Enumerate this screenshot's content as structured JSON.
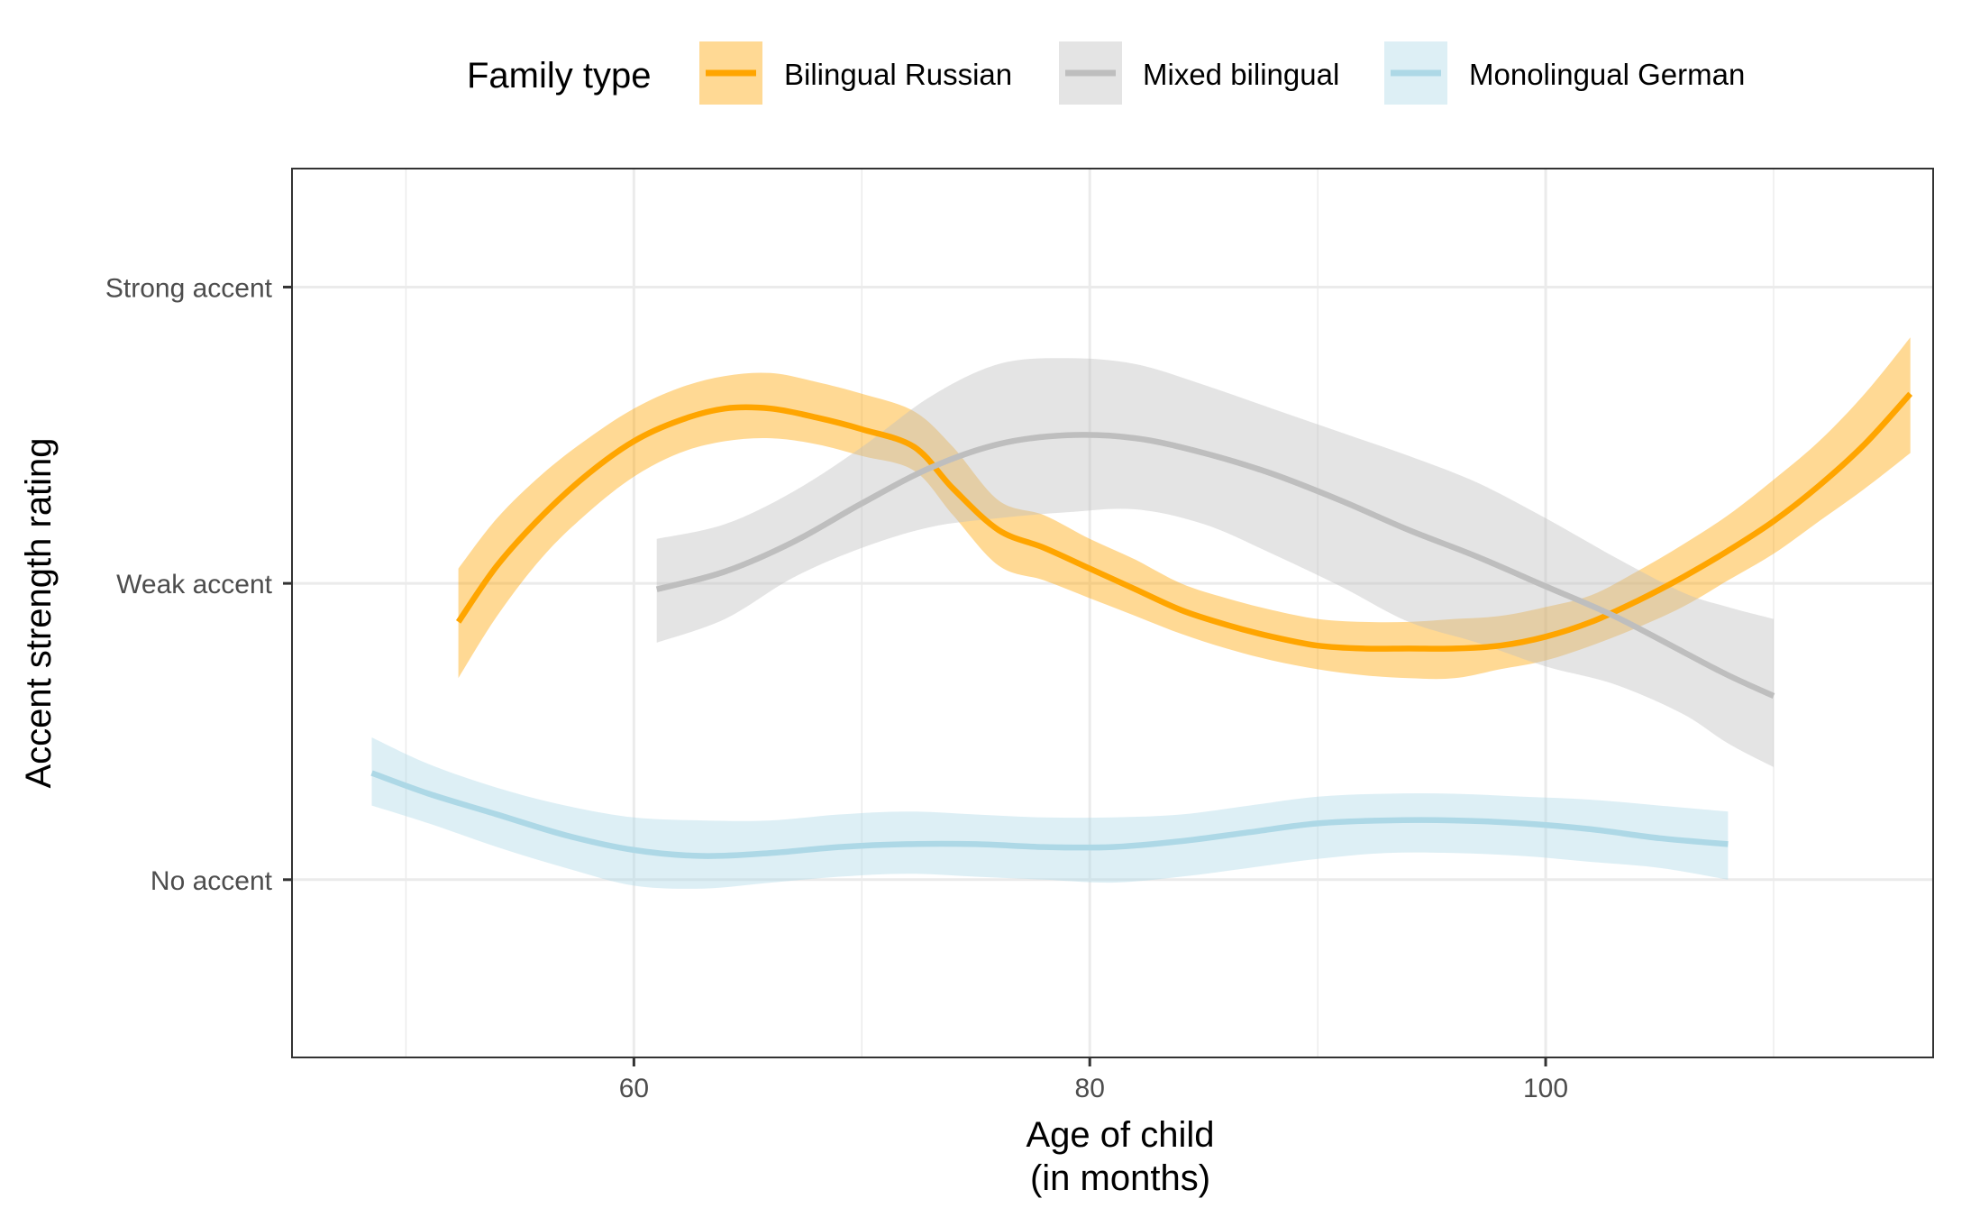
{
  "chart_data": {
    "type": "line",
    "title": "",
    "xlabel": [
      "Age of child",
      "(in months)"
    ],
    "ylabel": "Accent strength rating",
    "xlim": [
      45,
      117
    ],
    "ylim": [
      0.4,
      3.4
    ],
    "x_ticks": [
      60,
      80,
      100
    ],
    "x_tick_labels": [
      "60",
      "80",
      "100"
    ],
    "y_ticks": [
      1,
      2,
      3
    ],
    "y_tick_labels": [
      "No accent",
      "Weak accent",
      "Strong accent"
    ],
    "grid": true,
    "legend": {
      "title": "Family type",
      "position": "top",
      "entries": [
        "Bilingual Russian",
        "Mixed bilingual",
        "Monolingual German"
      ]
    },
    "series": [
      {
        "name": "Bilingual Russian",
        "color": "#FFA500",
        "fill": "#FFA500",
        "fill_opacity": 0.42,
        "x": [
          52.3,
          54,
          56,
          58,
          60,
          62,
          64,
          66,
          68,
          70,
          72.3,
          74,
          76,
          78,
          80,
          82,
          84,
          86,
          88,
          90,
          92,
          94,
          96,
          98,
          100,
          102,
          104,
          106,
          108,
          110,
          112,
          114,
          116
        ],
        "y": [
          1.87,
          2.06,
          2.23,
          2.37,
          2.48,
          2.55,
          2.59,
          2.59,
          2.56,
          2.52,
          2.46,
          2.32,
          2.18,
          2.12,
          2.05,
          1.98,
          1.91,
          1.86,
          1.82,
          1.79,
          1.78,
          1.78,
          1.78,
          1.79,
          1.82,
          1.87,
          1.94,
          2.02,
          2.11,
          2.21,
          2.33,
          2.47,
          2.64
        ],
        "lower": [
          1.68,
          1.89,
          2.09,
          2.24,
          2.36,
          2.44,
          2.48,
          2.49,
          2.47,
          2.43,
          2.38,
          2.23,
          2.06,
          2.01,
          1.95,
          1.89,
          1.83,
          1.78,
          1.74,
          1.71,
          1.69,
          1.68,
          1.68,
          1.71,
          1.74,
          1.79,
          1.85,
          1.92,
          2.01,
          2.1,
          2.21,
          2.32,
          2.44
        ],
        "upper": [
          2.05,
          2.22,
          2.37,
          2.49,
          2.59,
          2.66,
          2.7,
          2.71,
          2.68,
          2.64,
          2.58,
          2.46,
          2.28,
          2.23,
          2.15,
          2.08,
          2.0,
          1.95,
          1.91,
          1.88,
          1.87,
          1.87,
          1.88,
          1.89,
          1.92,
          1.96,
          2.04,
          2.13,
          2.23,
          2.35,
          2.48,
          2.64,
          2.83
        ]
      },
      {
        "name": "Mixed bilingual",
        "color": "#BEBEBE",
        "fill": "#BEBEBE",
        "fill_opacity": 0.42,
        "x": [
          61,
          64,
          67,
          70,
          73,
          76,
          79,
          82,
          85,
          88,
          91,
          94,
          97,
          100,
          103,
          106,
          108,
          110
        ],
        "y": [
          1.98,
          2.04,
          2.14,
          2.27,
          2.39,
          2.47,
          2.5,
          2.49,
          2.44,
          2.37,
          2.28,
          2.18,
          2.09,
          1.99,
          1.89,
          1.77,
          1.69,
          1.62
        ],
        "lower": [
          1.8,
          1.88,
          2.02,
          2.12,
          2.19,
          2.22,
          2.24,
          2.25,
          2.2,
          2.1,
          1.99,
          1.87,
          1.8,
          1.72,
          1.66,
          1.56,
          1.46,
          1.38
        ],
        "upper": [
          2.15,
          2.2,
          2.31,
          2.46,
          2.63,
          2.74,
          2.76,
          2.74,
          2.67,
          2.59,
          2.51,
          2.43,
          2.34,
          2.22,
          2.09,
          1.97,
          1.92,
          1.88
        ]
      },
      {
        "name": "Monolingual German",
        "color": "#ADD8E6",
        "fill": "#ADD8E6",
        "fill_opacity": 0.42,
        "x": [
          48.5,
          51,
          54,
          57,
          60,
          63,
          66,
          69,
          72,
          75,
          78,
          81,
          84,
          87,
          90,
          93,
          96,
          99,
          102,
          105,
          108
        ],
        "y": [
          1.36,
          1.29,
          1.22,
          1.15,
          1.1,
          1.08,
          1.09,
          1.11,
          1.12,
          1.12,
          1.11,
          1.11,
          1.13,
          1.16,
          1.19,
          1.2,
          1.2,
          1.19,
          1.17,
          1.14,
          1.12
        ],
        "lower": [
          1.25,
          1.19,
          1.11,
          1.04,
          0.98,
          0.97,
          0.99,
          1.01,
          1.02,
          1.01,
          1.0,
          0.99,
          1.01,
          1.04,
          1.07,
          1.09,
          1.09,
          1.08,
          1.06,
          1.04,
          1.0
        ],
        "upper": [
          1.48,
          1.39,
          1.31,
          1.25,
          1.21,
          1.2,
          1.2,
          1.22,
          1.23,
          1.22,
          1.21,
          1.21,
          1.22,
          1.25,
          1.28,
          1.29,
          1.29,
          1.28,
          1.27,
          1.25,
          1.23
        ]
      }
    ]
  }
}
